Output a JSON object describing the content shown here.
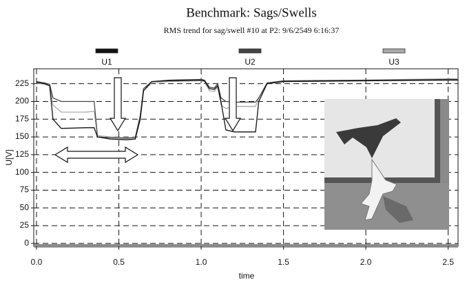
{
  "chart_data": {
    "type": "line",
    "title": "Benchmark: Sags/Swells",
    "subtitle": "RMS trend for sag/swell #10 at P2: 9/6/2549 6:16:37",
    "x_label": "time",
    "y_label": "U[V]",
    "x": [
      0,
      0.05,
      0.08,
      0.1,
      0.15,
      0.3,
      0.35,
      0.37,
      0.45,
      0.55,
      0.6,
      0.63,
      0.65,
      0.7,
      0.8,
      1.0,
      1.02,
      1.05,
      1.08,
      1.1,
      1.12,
      1.15,
      1.2,
      1.3,
      1.33,
      1.35,
      1.4,
      1.5,
      2.0,
      2.5,
      2.56
    ],
    "series": [
      {
        "name": "U1",
        "color": "#111111",
        "values": [
          227,
          225,
          222,
          175,
          162,
          163,
          163,
          150,
          147,
          146,
          147,
          175,
          215,
          228,
          229,
          230,
          229,
          218,
          217,
          222,
          200,
          160,
          157,
          157,
          157,
          200,
          225,
          228,
          229,
          230,
          230
        ]
      },
      {
        "name": "U2",
        "color": "#444444",
        "values": [
          228,
          226,
          224,
          205,
          200,
          200,
          200,
          150,
          149,
          148,
          149,
          180,
          218,
          228,
          230,
          231,
          230,
          220,
          219,
          225,
          205,
          200,
          199,
          199,
          199,
          205,
          226,
          229,
          230,
          231,
          231
        ]
      },
      {
        "name": "U3",
        "color": "#aaaaaa",
        "values": [
          226,
          224,
          222,
          195,
          185,
          185,
          186,
          152,
          150,
          149,
          150,
          180,
          215,
          226,
          228,
          229,
          228,
          215,
          214,
          220,
          195,
          190,
          193,
          193,
          193,
          205,
          225,
          228,
          230,
          232,
          232
        ]
      }
    ],
    "xlim": [
      0,
      2.56
    ],
    "ylim": [
      -4,
      246
    ],
    "xticks": [
      {
        "value": 0,
        "label": "0.0"
      },
      0.5,
      {
        "value": 1,
        "label": "1.0"
      },
      1.5,
      {
        "value": 2,
        "label": "2.0"
      },
      2.5
    ],
    "yticks": [
      0,
      25,
      50,
      75,
      100,
      125,
      150,
      175,
      200,
      225
    ],
    "grid": true,
    "legend": "top"
  }
}
